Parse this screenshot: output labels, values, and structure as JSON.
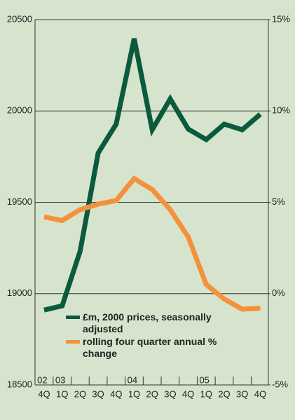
{
  "chart_data": {
    "type": "line",
    "categories": [
      "4Q",
      "1Q",
      "2Q",
      "3Q",
      "4Q",
      "1Q",
      "2Q",
      "3Q",
      "4Q",
      "1Q",
      "2Q",
      "3Q",
      "4Q"
    ],
    "year_groups": [
      {
        "label": "02",
        "from": 0
      },
      {
        "label": "03",
        "from": 1
      },
      {
        "label": "04",
        "from": 5
      },
      {
        "label": "05",
        "from": 9
      }
    ],
    "series": [
      {
        "name": "£m, 2000 prices, seasonally adjusted",
        "color": "#0b5a3f",
        "values": [
          18910,
          18933,
          19233,
          19770,
          19928,
          20396,
          19897,
          20066,
          19901,
          19843,
          19928,
          19897,
          19982
        ]
      },
      {
        "name": "rolling four quarter annual % change",
        "color": "#f5913b",
        "axis": "y2",
        "values": [
          4.2,
          4.0,
          4.6,
          4.9,
          5.1,
          6.3,
          5.7,
          4.6,
          3.1,
          0.5,
          -0.3,
          -0.85,
          -0.8
        ]
      }
    ],
    "ylim": [
      18500,
      20500
    ],
    "yticks": [
      18500,
      19000,
      19500,
      20000,
      20500
    ],
    "y2lim": [
      -5,
      15
    ],
    "y2ticks": [
      {
        "value": -5,
        "label": "-5%"
      },
      {
        "value": 0,
        "label": "0%"
      },
      {
        "value": 5,
        "label": "5%"
      },
      {
        "value": 10,
        "label": "10%"
      },
      {
        "value": 15,
        "label": "15%"
      }
    ],
    "grid": true
  }
}
